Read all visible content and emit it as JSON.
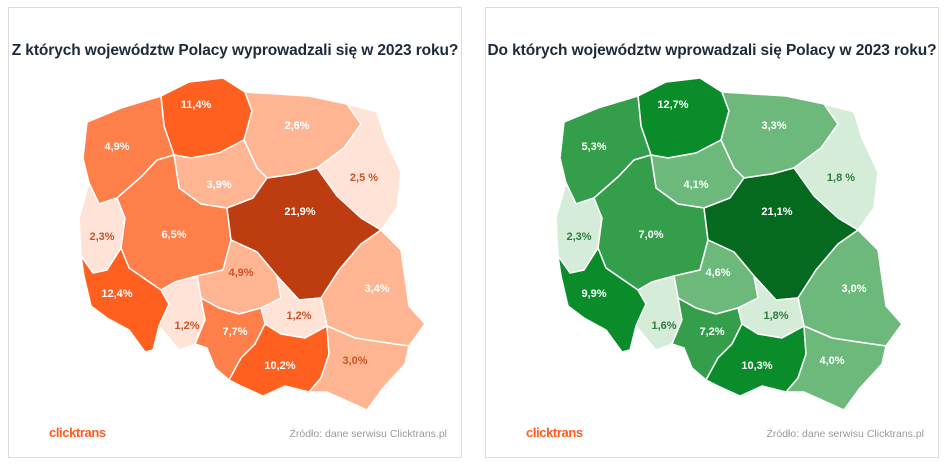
{
  "brand": {
    "logo_text_a": "click",
    "logo_text_b": "trans",
    "logo_color": "#ff5a1f"
  },
  "source_label": "Źródło: dane serwisu Clicktrans.pl",
  "maps": [
    {
      "title": "Z których województw Polacy wyprowadzali się  w 2023 roku?",
      "color_scheme": "orange",
      "regions": [
        {
          "name": "pomorskie",
          "value": "11,4%",
          "fill": "#ff5f1f",
          "label_color": "#ffffff"
        },
        {
          "name": "zachodniopomorskie",
          "value": "4,9%",
          "fill": "#ff7f4b",
          "label_color": "#ffffff"
        },
        {
          "name": "warmińsko-mazurskie",
          "value": "2,6%",
          "fill": "#ffb492",
          "label_color": "#ffffff"
        },
        {
          "name": "podlaskie",
          "value": "2,5 %",
          "fill": "#ffe3d6",
          "label_color": "#c9552a"
        },
        {
          "name": "kujawsko-pomorskie",
          "value": "3,9%",
          "fill": "#ffb492",
          "label_color": "#ffffff"
        },
        {
          "name": "lubuskie",
          "value": "2,3%",
          "fill": "#ffe3d6",
          "label_color": "#c9552a"
        },
        {
          "name": "wielkopolskie",
          "value": "6,5%",
          "fill": "#ff7f4b",
          "label_color": "#ffffff"
        },
        {
          "name": "mazowieckie",
          "value": "21,9%",
          "fill": "#bd3c10",
          "label_color": "#ffffff"
        },
        {
          "name": "łódzkie",
          "value": "4,9%",
          "fill": "#ffb492",
          "label_color": "#c9552a"
        },
        {
          "name": "lubelskie",
          "value": "3,4%",
          "fill": "#ffb492",
          "label_color": "#ffffff"
        },
        {
          "name": "dolnośląskie",
          "value": "12,4%",
          "fill": "#ff5f1f",
          "label_color": "#ffffff"
        },
        {
          "name": "opolskie",
          "value": "1,2%",
          "fill": "#ffe3d6",
          "label_color": "#c9552a"
        },
        {
          "name": "świętokrzyskie",
          "value": "1,2%",
          "fill": "#ffe3d6",
          "label_color": "#c9552a"
        },
        {
          "name": "śląskie",
          "value": "7,7%",
          "fill": "#ff7f4b",
          "label_color": "#ffffff"
        },
        {
          "name": "małopolskie",
          "value": "10,2%",
          "fill": "#ff5f1f",
          "label_color": "#ffffff"
        },
        {
          "name": "podkarpackie",
          "value": "3,0%",
          "fill": "#ffb492",
          "label_color": "#c9552a"
        }
      ]
    },
    {
      "title": "Do których województw wprowadzali się Polacy w 2023 roku?",
      "color_scheme": "green",
      "regions": [
        {
          "name": "pomorskie",
          "value": "12,7%",
          "fill": "#0b8c2a",
          "label_color": "#ffffff"
        },
        {
          "name": "zachodniopomorskie",
          "value": "5,3%",
          "fill": "#349e4b",
          "label_color": "#ffffff"
        },
        {
          "name": "warmińsko-mazurskie",
          "value": "3,3%",
          "fill": "#6cb97b",
          "label_color": "#ffffff"
        },
        {
          "name": "podlaskie",
          "value": "1,8 %",
          "fill": "#d5ecd8",
          "label_color": "#2e7d3e"
        },
        {
          "name": "kujawsko-pomorskie",
          "value": "4,1%",
          "fill": "#6cb97b",
          "label_color": "#ffffff"
        },
        {
          "name": "lubuskie",
          "value": "2,3%",
          "fill": "#d5ecd8",
          "label_color": "#2e7d3e"
        },
        {
          "name": "wielkopolskie",
          "value": "7,0%",
          "fill": "#349e4b",
          "label_color": "#ffffff"
        },
        {
          "name": "mazowieckie",
          "value": "21,1%",
          "fill": "#056a20",
          "label_color": "#ffffff"
        },
        {
          "name": "łódzkie",
          "value": "4,6%",
          "fill": "#6cb97b",
          "label_color": "#ffffff"
        },
        {
          "name": "lubelskie",
          "value": "3,0%",
          "fill": "#6cb97b",
          "label_color": "#ffffff"
        },
        {
          "name": "dolnośląskie",
          "value": "9,9%",
          "fill": "#0b8c2a",
          "label_color": "#ffffff"
        },
        {
          "name": "opolskie",
          "value": "1,6%",
          "fill": "#d5ecd8",
          "label_color": "#2e7d3e"
        },
        {
          "name": "świętokrzyskie",
          "value": "1,8%",
          "fill": "#d5ecd8",
          "label_color": "#2e7d3e"
        },
        {
          "name": "śląskie",
          "value": "7,2%",
          "fill": "#349e4b",
          "label_color": "#ffffff"
        },
        {
          "name": "małopolskie",
          "value": "10,3%",
          "fill": "#0b8c2a",
          "label_color": "#ffffff"
        },
        {
          "name": "podkarpackie",
          "value": "4,0%",
          "fill": "#6cb97b",
          "label_color": "#ffffff"
        }
      ]
    }
  ]
}
